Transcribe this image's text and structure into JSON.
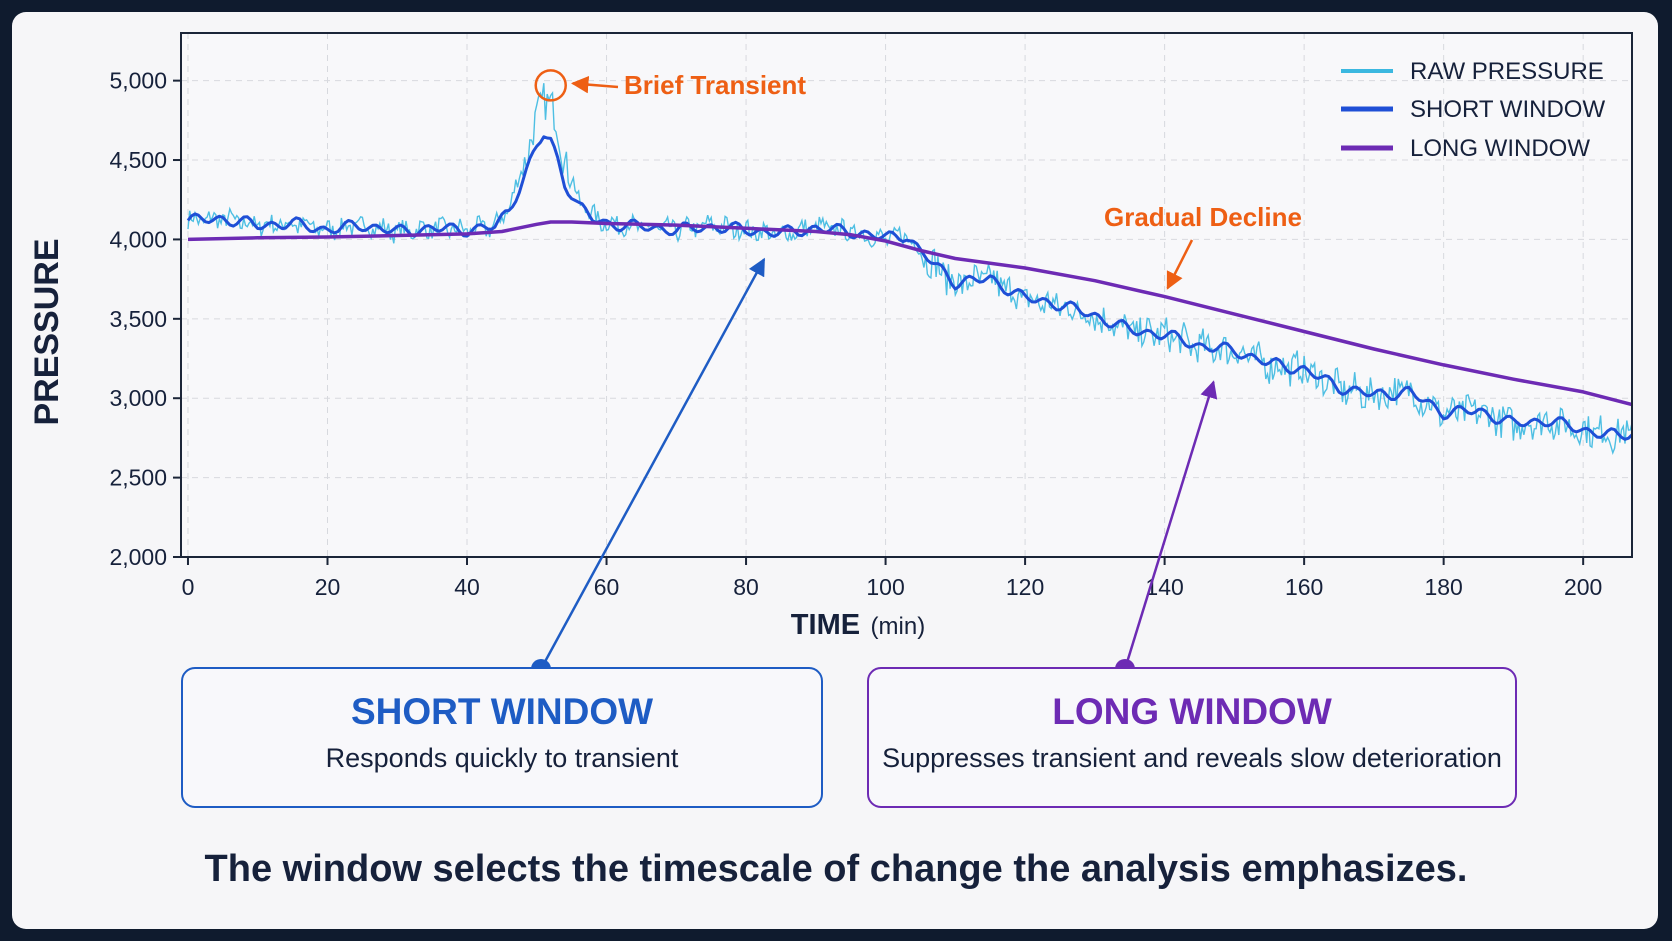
{
  "chart_data": {
    "type": "line",
    "xlabel": "TIME",
    "xlabel_unit": "(min)",
    "ylabel": "PRESSURE",
    "xlim": [
      -1,
      207
    ],
    "ylim": [
      2000,
      5300
    ],
    "x_ticks": [
      0,
      20,
      40,
      60,
      80,
      100,
      120,
      140,
      160,
      180,
      200
    ],
    "x_tick_labels": [
      "0",
      "20",
      "40",
      "60",
      "80",
      "100",
      "120",
      "140",
      "160",
      "180",
      "200"
    ],
    "y_ticks": [
      2000,
      2500,
      3000,
      3500,
      4000,
      4500,
      5000
    ],
    "y_tick_labels": [
      "2,000",
      "2,500",
      "3,000",
      "3,500",
      "4,000",
      "4,500",
      "5,000"
    ],
    "grid": true,
    "legend_position": "top-right",
    "series": [
      {
        "name": "RAW PRESSURE",
        "color": "#3bb8e0",
        "style": "noisy",
        "x": [
          0,
          5,
          10,
          15,
          20,
          25,
          30,
          35,
          40,
          44,
          46,
          48,
          50,
          51,
          52,
          53,
          54,
          56,
          58,
          60,
          65,
          70,
          75,
          80,
          85,
          90,
          95,
          100,
          103,
          105,
          110,
          115,
          120,
          125,
          130,
          135,
          140,
          145,
          150,
          155,
          160,
          165,
          170,
          175,
          180,
          185,
          190,
          195,
          200,
          205,
          207
        ],
        "y": [
          4120,
          4130,
          4090,
          4100,
          4060,
          4090,
          4050,
          4070,
          4060,
          4080,
          4200,
          4450,
          4750,
          4900,
          4850,
          4700,
          4500,
          4250,
          4150,
          4100,
          4080,
          4060,
          4090,
          4060,
          4030,
          4080,
          4050,
          4000,
          4030,
          3920,
          3720,
          3750,
          3620,
          3580,
          3520,
          3420,
          3400,
          3320,
          3300,
          3210,
          3180,
          3060,
          3020,
          3050,
          2900,
          2920,
          2830,
          2860,
          2800,
          2770,
          2780
        ]
      },
      {
        "name": "SHORT WINDOW",
        "color": "#1f4fd6",
        "x": [
          0,
          5,
          10,
          15,
          20,
          25,
          30,
          35,
          40,
          44,
          46,
          48,
          50,
          51,
          52,
          53,
          54,
          56,
          58,
          60,
          65,
          70,
          75,
          80,
          85,
          90,
          95,
          100,
          103,
          105,
          110,
          115,
          120,
          125,
          130,
          135,
          140,
          145,
          150,
          155,
          160,
          165,
          170,
          175,
          180,
          185,
          190,
          195,
          200,
          205,
          207
        ],
        "y": [
          4120,
          4130,
          4090,
          4100,
          4060,
          4090,
          4050,
          4070,
          4060,
          4080,
          4180,
          4380,
          4580,
          4660,
          4620,
          4500,
          4360,
          4210,
          4130,
          4100,
          4080,
          4060,
          4080,
          4060,
          4040,
          4070,
          4050,
          4010,
          4030,
          3920,
          3730,
          3750,
          3630,
          3590,
          3520,
          3430,
          3400,
          3330,
          3300,
          3220,
          3180,
          3070,
          3020,
          3040,
          2910,
          2920,
          2840,
          2860,
          2800,
          2760,
          2780
        ]
      },
      {
        "name": "LONG WINDOW",
        "color": "#6d2bb4",
        "x": [
          0,
          10,
          20,
          30,
          40,
          45,
          50,
          52,
          55,
          60,
          70,
          80,
          90,
          95,
          100,
          105,
          110,
          120,
          130,
          140,
          150,
          160,
          170,
          180,
          190,
          200,
          207
        ],
        "y": [
          4000,
          4010,
          4015,
          4025,
          4035,
          4050,
          4095,
          4110,
          4110,
          4100,
          4090,
          4070,
          4050,
          4030,
          3990,
          3930,
          3880,
          3820,
          3740,
          3640,
          3530,
          3420,
          3310,
          3210,
          3120,
          3040,
          2960
        ]
      }
    ],
    "annotations": [
      {
        "text": "Brief Transient",
        "color": "#ee5f14",
        "target_x": 52,
        "target_y": 4970
      },
      {
        "text": "Gradual Decline",
        "color": "#ee5f14",
        "target_x": 139,
        "target_y": 3680
      }
    ]
  },
  "cards": {
    "short": {
      "title": "SHORT WINDOW",
      "subtitle": "Responds quickly to transient",
      "color": "#1e5cc4",
      "points_to_x": 80,
      "points_to_y": 3900
    },
    "long": {
      "title": "LONG WINDOW",
      "subtitle": "Suppresses transient and reveals slow deterioration",
      "color": "#6d2bb4",
      "points_to_x": 145,
      "points_to_y": 3140
    }
  },
  "caption": "The window selects the timescale of change the analysis emphasizes."
}
